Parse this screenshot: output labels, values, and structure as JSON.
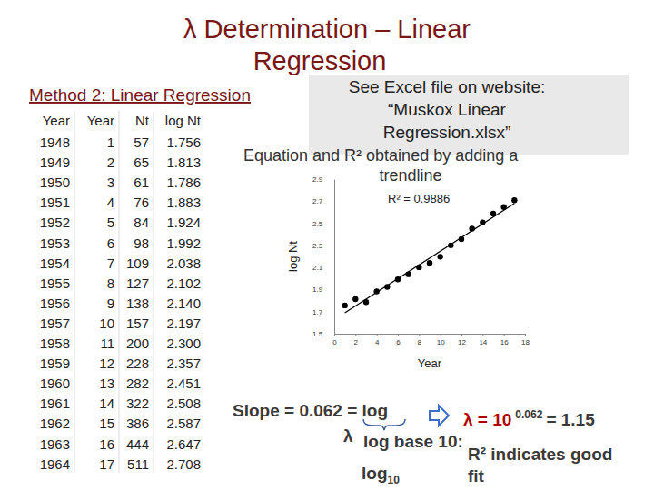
{
  "chart_data": {
    "type": "scatter",
    "x_label": "Year",
    "y_label": "log Nt",
    "annotations": [
      "R² = 0.9886"
    ],
    "series": [
      {
        "type": "scatter",
        "color": "#000000",
        "marker": "circle",
        "x": [
          1,
          2,
          3,
          4,
          5,
          6,
          7,
          8,
          9,
          10,
          11,
          12,
          13,
          14,
          15,
          16,
          17
        ],
        "values": [
          1.756,
          1.813,
          1.786,
          1.883,
          1.924,
          1.992,
          2.038,
          2.102,
          2.14,
          2.197,
          2.3,
          2.357,
          2.451,
          2.508,
          2.587,
          2.647,
          2.708
        ]
      },
      {
        "type": "line",
        "color": "#000000",
        "line_style": "solid",
        "x": [
          1,
          17
        ],
        "values": [
          1.69,
          2.68
        ]
      }
    ],
    "xlim": [
      0,
      18
    ],
    "xticks": [
      0,
      2,
      4,
      6,
      8,
      10,
      12,
      14,
      16,
      18
    ],
    "ylim": [
      1.5,
      2.9
    ],
    "yticks": [
      1.5,
      1.7,
      1.9,
      2.1,
      2.3,
      2.5,
      2.7,
      2.9
    ]
  },
  "slide": {
    "title": [
      "λ Determination – Linear",
      "Regression"
    ],
    "method": "Method 2: Linear Regression",
    "box": [
      "See Excel file on website:",
      "“Muskox Linear",
      "Regression.xlsx”"
    ],
    "note": [
      "Equation and R² obtained by adding a",
      "trendline"
    ],
    "table": {
      "header": [
        "Year",
        "Year",
        "Nt",
        "log Nt"
      ],
      "rows": [
        [
          "1948",
          "1",
          "57",
          "1.756"
        ],
        [
          "1949",
          "2",
          "65",
          "1.813"
        ],
        [
          "1950",
          "3",
          "61",
          "1.786"
        ],
        [
          "1951",
          "4",
          "76",
          "1.883"
        ],
        [
          "1952",
          "5",
          "84",
          "1.924"
        ],
        [
          "1953",
          "6",
          "98",
          "1.992"
        ],
        [
          "1954",
          "7",
          "109",
          "2.038"
        ],
        [
          "1955",
          "8",
          "127",
          "2.102"
        ],
        [
          "1956",
          "9",
          "138",
          "2.140"
        ],
        [
          "1957",
          "10",
          "157",
          "2.197"
        ],
        [
          "1958",
          "11",
          "200",
          "2.300"
        ],
        [
          "1959",
          "12",
          "228",
          "2.357"
        ],
        [
          "1960",
          "13",
          "282",
          "2.451"
        ],
        [
          "1961",
          "14",
          "322",
          "2.508"
        ],
        [
          "1962",
          "15",
          "386",
          "2.587"
        ],
        [
          "1963",
          "16",
          "444",
          "2.647"
        ],
        [
          "1964",
          "17",
          "511",
          "2.708"
        ]
      ]
    },
    "slope": [
      "Slope = 0.062 = log",
      "λ",
      "log base 10:"
    ],
    "log10": {
      "text": "log",
      "sub": "10"
    },
    "lambda_eq": {
      "base": "λ = 10",
      "exponent": "0.062",
      "result": "= 1.15"
    },
    "fit": [
      "R² indicates good",
      "fit"
    ]
  }
}
